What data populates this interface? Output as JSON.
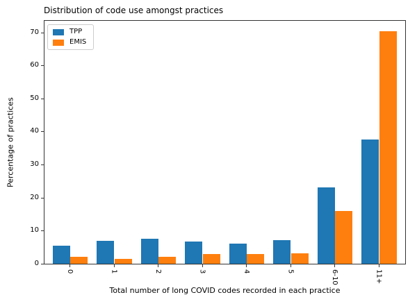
{
  "figure": {
    "title": "Distribution of code use amongst practices"
  },
  "chart_data": {
    "type": "bar",
    "title": "Distribution of code use amongst practices",
    "xlabel": "Total number of long COVID codes recorded in each practice",
    "ylabel": "Percentage of practices",
    "categories": [
      "0",
      "1",
      "2",
      "3",
      "4",
      "5",
      "6-10",
      "11+"
    ],
    "series": [
      {
        "name": "TPP",
        "color": "#1f77b4",
        "values": [
          5.4,
          6.9,
          7.5,
          6.8,
          6.0,
          7.2,
          23.1,
          37.5
        ]
      },
      {
        "name": "EMIS",
        "color": "#ff7f0e",
        "values": [
          2.0,
          1.4,
          2.1,
          2.9,
          2.9,
          3.1,
          15.9,
          70.4
        ]
      }
    ],
    "yticks": [
      0,
      10,
      20,
      30,
      40,
      50,
      60,
      70
    ],
    "ylim": [
      0,
      73.7
    ],
    "xtick_rotation": 90,
    "grid": false,
    "legend_position": "upper left",
    "legend": [
      {
        "label": "TPP",
        "color": "#1f77b4"
      },
      {
        "label": "EMIS",
        "color": "#ff7f0e"
      }
    ]
  }
}
